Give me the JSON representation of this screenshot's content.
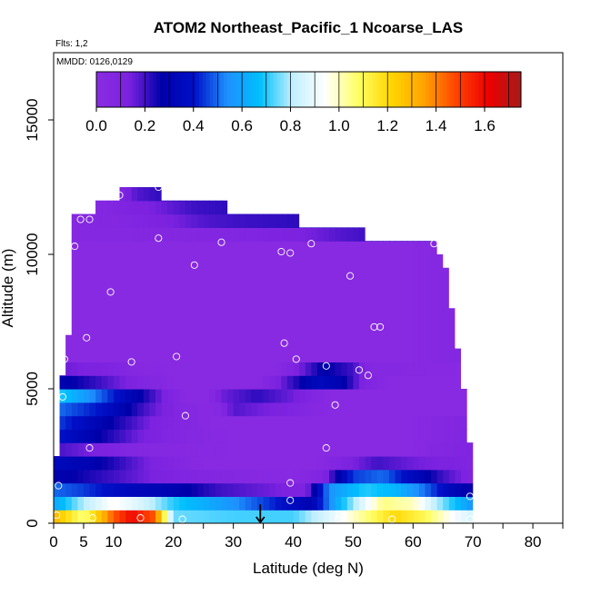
{
  "chart_data": {
    "type": "heatmap",
    "title": "ATOM2 Northeast_Pacific_1 Ncoarse_LAS",
    "flights_label": "Flts: 1,2",
    "dates_label": "MMDD: 0126,0129",
    "xlabel": "Latitude (deg N)",
    "ylabel": "Altitude (m)",
    "xlim": [
      0,
      85
    ],
    "ylim": [
      0,
      17500
    ],
    "x_ticks": [
      0,
      5,
      10,
      20,
      30,
      40,
      50,
      60,
      70,
      80
    ],
    "y_ticks": [
      0,
      5000,
      10000,
      15000
    ],
    "colorbar": {
      "range": [
        0,
        1.75
      ],
      "ticks": [
        0.0,
        0.2,
        0.4,
        0.6,
        0.8,
        1.0,
        1.2,
        1.4,
        1.6
      ],
      "tick_labels": [
        "0.0",
        "0.2",
        "0.4",
        "0.6",
        "0.8",
        "1.0",
        "1.2",
        "1.4",
        "1.6"
      ],
      "colors": [
        "#8a2be2",
        "#7b22e0",
        "#0000aa",
        "#0010c8",
        "#1e90ff",
        "#00bfff",
        "#bfefff",
        "#ffffff",
        "#ffff66",
        "#ffd700",
        "#ffa500",
        "#ff4500",
        "#ee0000",
        "#a51c1c"
      ]
    },
    "arrow_marker": {
      "x": 34.5,
      "y_top": 700,
      "y_bottom": 0
    },
    "domain_outline": [
      [
        11,
        12500
      ],
      [
        18,
        12500
      ],
      [
        18,
        12000
      ],
      [
        29,
        12000
      ],
      [
        29,
        11500
      ],
      [
        41,
        11500
      ],
      [
        41,
        11000
      ],
      [
        52,
        11000
      ],
      [
        52,
        10500
      ],
      [
        64,
        10500
      ],
      [
        64,
        10000
      ],
      [
        65,
        10000
      ],
      [
        65,
        9500
      ],
      [
        66,
        9500
      ],
      [
        66,
        8000
      ],
      [
        67,
        8000
      ],
      [
        67,
        6500
      ],
      [
        68,
        6500
      ],
      [
        68,
        5000
      ],
      [
        69,
        5000
      ],
      [
        69,
        3000
      ],
      [
        70,
        3000
      ],
      [
        70,
        0
      ],
      [
        0,
        0
      ],
      [
        0,
        2500
      ],
      [
        1,
        2500
      ],
      [
        1,
        5500
      ],
      [
        2,
        5500
      ],
      [
        2,
        7000
      ],
      [
        3,
        7000
      ],
      [
        3,
        11500
      ],
      [
        7,
        11500
      ],
      [
        7,
        12000
      ],
      [
        11,
        12000
      ]
    ],
    "bands": [
      {
        "y0": 0,
        "y1": 500,
        "stops": [
          [
            0,
            1.3
          ],
          [
            5,
            1.05
          ],
          [
            10,
            1.45
          ],
          [
            13,
            1.6
          ],
          [
            17,
            1.45
          ],
          [
            20,
            0.75
          ],
          [
            30,
            0.72
          ],
          [
            40,
            0.72
          ],
          [
            47,
            0.9
          ],
          [
            52,
            1.05
          ],
          [
            57,
            1.2
          ],
          [
            62,
            1.1
          ],
          [
            66,
            0.95
          ],
          [
            70,
            0.85
          ]
        ]
      },
      {
        "y0": 500,
        "y1": 1000,
        "stops": [
          [
            0,
            0.6
          ],
          [
            5,
            0.8
          ],
          [
            10,
            0.95
          ],
          [
            15,
            0.85
          ],
          [
            20,
            0.7
          ],
          [
            30,
            0.55
          ],
          [
            38,
            0.4
          ],
          [
            43,
            0.3
          ],
          [
            47,
            0.6
          ],
          [
            52,
            0.9
          ],
          [
            55,
            1.05
          ],
          [
            60,
            1.0
          ],
          [
            64,
            0.8
          ],
          [
            70,
            0.55
          ]
        ]
      },
      {
        "y0": 1000,
        "y1": 1500,
        "stops": [
          [
            0,
            0.5
          ],
          [
            5,
            0.45
          ],
          [
            12,
            0.35
          ],
          [
            20,
            0.3
          ],
          [
            28,
            0.2
          ],
          [
            36,
            0.15
          ],
          [
            42,
            0.1
          ],
          [
            46,
            0.55
          ],
          [
            52,
            0.7
          ],
          [
            57,
            0.65
          ],
          [
            62,
            0.5
          ],
          [
            66,
            0.35
          ],
          [
            70,
            0.25
          ]
        ]
      },
      {
        "y0": 1500,
        "y1": 2000,
        "stops": [
          [
            0,
            0.3
          ],
          [
            10,
            0.2
          ],
          [
            20,
            0.1
          ],
          [
            30,
            0.05
          ],
          [
            40,
            0.02
          ],
          [
            45,
            0.1
          ],
          [
            50,
            0.45
          ],
          [
            55,
            0.5
          ],
          [
            60,
            0.35
          ],
          [
            65,
            0.2
          ],
          [
            70,
            0.1
          ]
        ]
      },
      {
        "y0": 2000,
        "y1": 2500,
        "stops": [
          [
            0,
            0.35
          ],
          [
            6,
            0.3
          ],
          [
            12,
            0.2
          ],
          [
            18,
            0.1
          ],
          [
            25,
            0.02
          ],
          [
            44,
            0.02
          ],
          [
            48,
            0.1
          ],
          [
            54,
            0.2
          ],
          [
            60,
            0.15
          ],
          [
            66,
            0.12
          ],
          [
            70,
            0.08
          ]
        ]
      },
      {
        "y0": 2500,
        "y1": 3000,
        "stops": [
          [
            0,
            0.2
          ],
          [
            8,
            0.12
          ],
          [
            16,
            0.05
          ],
          [
            30,
            0.02
          ],
          [
            60,
            0.02
          ],
          [
            64,
            0.06
          ],
          [
            70,
            0.1
          ]
        ]
      },
      {
        "y0": 3000,
        "y1": 3500,
        "stops": [
          [
            1,
            0.4
          ],
          [
            6,
            0.3
          ],
          [
            14,
            0.15
          ],
          [
            22,
            0.05
          ],
          [
            30,
            0.02
          ],
          [
            60,
            0.02
          ],
          [
            66,
            0.06
          ],
          [
            69,
            0.1
          ]
        ]
      },
      {
        "y0": 3500,
        "y1": 4000,
        "stops": [
          [
            1,
            0.45
          ],
          [
            8,
            0.3
          ],
          [
            18,
            0.1
          ],
          [
            26,
            0.02
          ],
          [
            60,
            0.02
          ],
          [
            65,
            0.05
          ],
          [
            69,
            0.08
          ]
        ]
      },
      {
        "y0": 4000,
        "y1": 4500,
        "stops": [
          [
            1,
            0.5
          ],
          [
            8,
            0.4
          ],
          [
            15,
            0.2
          ],
          [
            22,
            0.05
          ],
          [
            27,
            0.02
          ],
          [
            30,
            0.18
          ],
          [
            38,
            0.12
          ],
          [
            46,
            0.02
          ],
          [
            69,
            0.02
          ]
        ]
      },
      {
        "y0": 4500,
        "y1": 5000,
        "stops": [
          [
            1,
            0.7
          ],
          [
            6,
            0.55
          ],
          [
            12,
            0.35
          ],
          [
            18,
            0.15
          ],
          [
            22,
            0.02
          ],
          [
            26,
            0.02
          ],
          [
            28,
            0.15
          ],
          [
            34,
            0.22
          ],
          [
            40,
            0.15
          ],
          [
            46,
            0.02
          ],
          [
            68,
            0.02
          ]
        ]
      },
      {
        "y0": 5000,
        "y1": 5500,
        "stops": [
          [
            1,
            0.3
          ],
          [
            8,
            0.2
          ],
          [
            14,
            0.1
          ],
          [
            20,
            0.02
          ],
          [
            34,
            0.02
          ],
          [
            38,
            0.15
          ],
          [
            44,
            0.35
          ],
          [
            48,
            0.3
          ],
          [
            52,
            0.1
          ],
          [
            56,
            0.02
          ],
          [
            68,
            0.02
          ]
        ]
      },
      {
        "y0": 5500,
        "y1": 6000,
        "stops": [
          [
            2,
            0.15
          ],
          [
            10,
            0.1
          ],
          [
            14,
            0.04
          ],
          [
            20,
            0.02
          ],
          [
            37,
            0.02
          ],
          [
            40,
            0.1
          ],
          [
            45,
            0.28
          ],
          [
            50,
            0.2
          ],
          [
            53,
            0.05
          ],
          [
            68,
            0.02
          ]
        ]
      },
      {
        "y0": 6000,
        "y1": 10500,
        "stops": [
          [
            3,
            0.02
          ],
          [
            60,
            0.02
          ],
          [
            64,
            0.04
          ],
          [
            67,
            0.06
          ]
        ]
      },
      {
        "y0": 10500,
        "y1": 11000,
        "stops": [
          [
            3,
            0.04
          ],
          [
            20,
            0.06
          ],
          [
            30,
            0.08
          ],
          [
            40,
            0.12
          ],
          [
            48,
            0.18
          ],
          [
            52,
            0.2
          ]
        ]
      },
      {
        "y0": 11000,
        "y1": 11500,
        "stops": [
          [
            3,
            0.04
          ],
          [
            10,
            0.06
          ],
          [
            18,
            0.12
          ],
          [
            25,
            0.18
          ],
          [
            30,
            0.2
          ],
          [
            41,
            0.22
          ]
        ]
      },
      {
        "y0": 11500,
        "y1": 12000,
        "stops": [
          [
            7,
            0.05
          ],
          [
            12,
            0.1
          ],
          [
            18,
            0.15
          ],
          [
            23,
            0.2
          ],
          [
            29,
            0.22
          ]
        ]
      },
      {
        "y0": 12000,
        "y1": 12500,
        "stops": [
          [
            11,
            0.1
          ],
          [
            14,
            0.18
          ],
          [
            18,
            0.22
          ]
        ]
      }
    ],
    "sample_points": [
      [
        0.5,
        300
      ],
      [
        6.5,
        200
      ],
      [
        14.5,
        200
      ],
      [
        21.5,
        150
      ],
      [
        47.5,
        150
      ],
      [
        56.5,
        150
      ],
      [
        69.5,
        150
      ],
      [
        39.5,
        850
      ],
      [
        69.5,
        1000
      ],
      [
        0.8,
        1400
      ],
      [
        39.5,
        1500
      ],
      [
        6,
        2800
      ],
      [
        45.5,
        2800
      ],
      [
        22,
        4000
      ],
      [
        47,
        4400
      ],
      [
        1.5,
        4700
      ],
      [
        69,
        5200
      ],
      [
        52.5,
        5500
      ],
      [
        13,
        6000
      ],
      [
        20.5,
        6200
      ],
      [
        40.5,
        6100
      ],
      [
        45.5,
        5850
      ],
      [
        51,
        5700
      ],
      [
        1.8,
        6100
      ],
      [
        5.5,
        6900
      ],
      [
        38.5,
        6700
      ],
      [
        53.5,
        7300
      ],
      [
        54.5,
        7300
      ],
      [
        9.5,
        8600
      ],
      [
        49.5,
        9200
      ],
      [
        23.5,
        9600
      ],
      [
        38,
        10100
      ],
      [
        39.5,
        10050
      ],
      [
        3.5,
        10300
      ],
      [
        28,
        10450
      ],
      [
        43,
        10400
      ],
      [
        63.5,
        10400
      ],
      [
        17.5,
        10600
      ],
      [
        4.5,
        11300
      ],
      [
        6,
        11300
      ],
      [
        11,
        12200
      ],
      [
        17.5,
        12500
      ]
    ]
  }
}
